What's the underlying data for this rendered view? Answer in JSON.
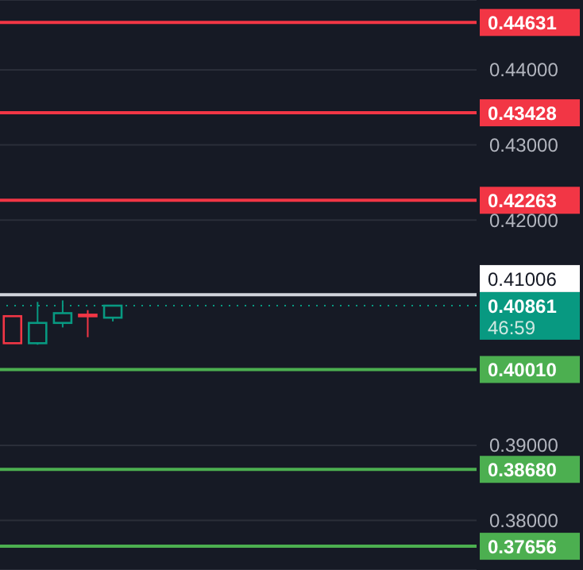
{
  "chart_data": {
    "type": "candlestick",
    "categories": [
      null,
      null,
      null,
      null,
      null,
      null,
      null,
      null,
      null,
      null,
      null,
      null,
      null,
      null,
      null,
      null,
      null,
      null,
      null
    ],
    "ohlc": [
      [
        0.4072,
        0.4072,
        0.4036,
        0.4036
      ],
      [
        0.4036,
        0.4091,
        0.4034,
        0.4063
      ],
      [
        0.4063,
        0.4093,
        0.4057,
        0.4076
      ],
      [
        0.4074,
        0.408,
        0.4044,
        0.4073
      ],
      [
        0.407,
        0.4086,
        0.4065,
        0.4086
      ],
      null,
      null,
      null,
      null,
      null,
      null,
      null,
      null,
      null,
      null,
      null,
      null,
      null,
      null
    ],
    "colors": [
      "#f23645",
      "#089981",
      "#089981",
      "#f23645",
      "#089981",
      null,
      null,
      null,
      null,
      null,
      null,
      null,
      null,
      null,
      null,
      null,
      null,
      null,
      null
    ],
    "ylim": [
      0.3734,
      0.4493
    ],
    "yticks": [
      {
        "value": 0.38,
        "label": "0.38000"
      },
      {
        "value": 0.39,
        "label": "0.39000"
      },
      {
        "value": 0.42,
        "label": "0.42000"
      },
      {
        "value": 0.43,
        "label": "0.43000"
      },
      {
        "value": 0.44,
        "label": "0.44000"
      }
    ],
    "grid": "y",
    "ref_lines": [
      {
        "axis": "y",
        "value": 0.44631,
        "label": "0.44631",
        "color": "#f23645"
      },
      {
        "axis": "y",
        "value": 0.43428,
        "label": "0.43428",
        "color": "#f23645"
      },
      {
        "axis": "y",
        "value": 0.42263,
        "label": "0.42263",
        "color": "#f23645"
      },
      {
        "axis": "y",
        "value": 0.41006,
        "label": "0.41006",
        "color": "#d1d4dc"
      },
      {
        "axis": "y",
        "value": 0.40861,
        "label": "0.40861",
        "color": "#089981",
        "line_style": "dotted"
      },
      {
        "axis": "y",
        "value": 0.4001,
        "label": "0.40010",
        "color": "#4caf50"
      },
      {
        "axis": "y",
        "value": 0.3868,
        "label": "0.38680",
        "color": "#4caf50"
      },
      {
        "axis": "y",
        "value": 0.37656,
        "label": "0.37656",
        "color": "#4caf50"
      }
    ],
    "annotations": [
      "46:59"
    ]
  }
}
